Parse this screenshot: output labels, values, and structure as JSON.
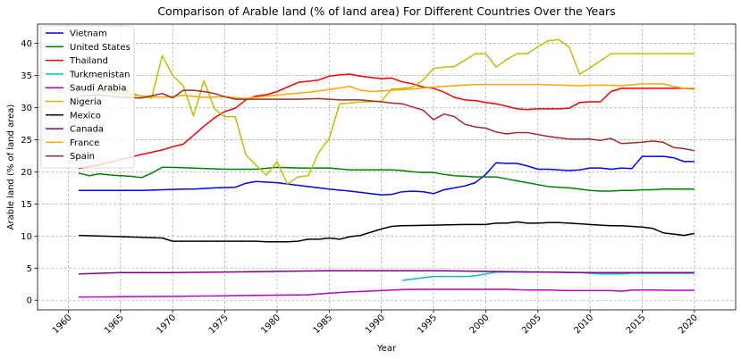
{
  "chart_data": {
    "type": "line",
    "title": "Comparison of Arable land (% of land area) For Different Countries Over the Years",
    "xlabel": "Year",
    "ylabel": "Arable land (% of land area)",
    "xlim": [
      1957.05,
      2023.95
    ],
    "ylim": [
      -1.5,
      43
    ],
    "xticks": [
      1960,
      1965,
      1970,
      1975,
      1980,
      1985,
      1990,
      1995,
      2000,
      2005,
      2010,
      2015,
      2020
    ],
    "yticks": [
      0,
      5,
      10,
      15,
      20,
      25,
      30,
      35,
      40
    ],
    "grid": true,
    "legend_position": "upper-left",
    "series": [
      {
        "name": "Vietnam",
        "color": "#0000ff",
        "x": [
          1961,
          1967,
          1969,
          1971,
          1972,
          1974,
          1976,
          1977,
          1978,
          1980,
          1985,
          1987,
          1990,
          1991,
          1992,
          1993,
          1994,
          1995,
          1996,
          1997,
          1998,
          1999,
          2000,
          2001,
          2002,
          2003,
          2004,
          2005,
          2006,
          2007,
          2008,
          2009,
          2010,
          2011,
          2012,
          2013,
          2014,
          2015,
          2016,
          2017,
          2018,
          2019,
          2020
        ],
        "y": [
          17.1,
          17.1,
          17.2,
          17.3,
          17.3,
          17.5,
          17.6,
          18.2,
          18.5,
          18.3,
          17.3,
          17.0,
          16.4,
          16.5,
          16.9,
          17.0,
          16.9,
          16.6,
          17.2,
          17.5,
          17.8,
          18.3,
          19.6,
          21.4,
          21.3,
          21.3,
          20.9,
          20.4,
          20.4,
          20.3,
          20.2,
          20.3,
          20.6,
          20.6,
          20.4,
          20.6,
          20.5,
          22.4,
          22.4,
          22.4,
          22.2,
          21.6,
          21.6
        ]
      },
      {
        "name": "United States",
        "color": "#008000",
        "x": [
          1961,
          1962,
          1963,
          1964,
          1965,
          1966,
          1967,
          1968,
          1969,
          1970,
          1975,
          1978,
          1980,
          1982,
          1985,
          1987,
          1990,
          1991,
          1992,
          1993,
          1994,
          1995,
          1996,
          1997,
          1998,
          1999,
          2000,
          2001,
          2002,
          2003,
          2004,
          2005,
          2006,
          2007,
          2008,
          2009,
          2010,
          2011,
          2012,
          2013,
          2014,
          2015,
          2016,
          2017,
          2018,
          2019,
          2020
        ],
        "y": [
          19.8,
          19.4,
          19.7,
          19.5,
          19.4,
          19.3,
          19.1,
          19.8,
          20.7,
          20.7,
          20.4,
          20.4,
          20.7,
          20.6,
          20.6,
          20.3,
          20.3,
          20.3,
          20.2,
          20.0,
          19.9,
          19.9,
          19.6,
          19.4,
          19.3,
          19.2,
          19.2,
          19.2,
          18.9,
          18.6,
          18.3,
          18.0,
          17.7,
          17.6,
          17.5,
          17.3,
          17.1,
          17.0,
          17.0,
          17.1,
          17.1,
          17.2,
          17.2,
          17.3,
          17.3,
          17.3,
          17.3
        ]
      },
      {
        "name": "Thailand",
        "color": "#ff0000",
        "x": [
          1961,
          1963,
          1965,
          1967,
          1969,
          1970,
          1971,
          1972,
          1973,
          1974,
          1975,
          1976,
          1977,
          1978,
          1979,
          1980,
          1981,
          1982,
          1983,
          1984,
          1985,
          1986,
          1987,
          1988,
          1989,
          1990,
          1991,
          1992,
          1993,
          1994,
          1995,
          1996,
          1997,
          1998,
          1999,
          2000,
          2001,
          2002,
          2003,
          2004,
          2005,
          2006,
          2007,
          2008,
          2009,
          2010,
          2011,
          2012,
          2013,
          2014,
          2015,
          2016,
          2017,
          2018,
          2019,
          2020
        ],
        "y": [
          20.5,
          21.1,
          21.9,
          22.7,
          23.4,
          23.9,
          24.3,
          25.7,
          27.1,
          28.4,
          29.4,
          29.9,
          31.2,
          31.8,
          32.0,
          32.5,
          33.2,
          33.9,
          34.1,
          34.3,
          34.9,
          35.1,
          35.2,
          34.9,
          34.7,
          34.5,
          34.6,
          34.0,
          33.7,
          33.2,
          33.0,
          32.4,
          31.6,
          31.2,
          31.1,
          30.8,
          30.6,
          30.2,
          29.8,
          29.7,
          29.8,
          29.8,
          29.8,
          29.9,
          30.8,
          30.9,
          30.9,
          32.5,
          33.0,
          33.0,
          33.0,
          33.0,
          33.0,
          33.0,
          33.0,
          32.9
        ]
      },
      {
        "name": "Turkmenistan",
        "color": "#00bfbf",
        "x": [
          1992,
          1993,
          1994,
          1995,
          1996,
          1997,
          1998,
          1999,
          2000,
          2001,
          2002,
          2003,
          2004,
          2005,
          2006,
          2007,
          2008,
          2009,
          2010,
          2011,
          2012,
          2013,
          2014,
          2015,
          2016,
          2017,
          2018,
          2019,
          2020
        ],
        "y": [
          3.1,
          3.3,
          3.5,
          3.7,
          3.7,
          3.7,
          3.7,
          3.8,
          4.1,
          4.4,
          4.4,
          4.4,
          4.4,
          4.4,
          4.4,
          4.4,
          4.3,
          4.3,
          4.2,
          4.1,
          4.1,
          4.1,
          4.2,
          4.2,
          4.2,
          4.2,
          4.2,
          4.2,
          4.2
        ]
      },
      {
        "name": "Saudi Arabia",
        "color": "#bf00bf",
        "x": [
          1961,
          1965,
          1970,
          1975,
          1980,
          1983,
          1985,
          1987,
          1990,
          1992,
          1994,
          1996,
          1998,
          2000,
          2002,
          2004,
          2006,
          2008,
          2010,
          2012,
          2013,
          2014,
          2016,
          2018,
          2020
        ],
        "y": [
          0.5,
          0.55,
          0.6,
          0.7,
          0.8,
          0.85,
          1.1,
          1.3,
          1.5,
          1.65,
          1.7,
          1.7,
          1.7,
          1.7,
          1.7,
          1.6,
          1.6,
          1.5,
          1.5,
          1.5,
          1.4,
          1.6,
          1.6,
          1.55,
          1.55
        ]
      },
      {
        "name": "Nigeria",
        "color": "#bfbf00",
        "x": [
          1961,
          1963,
          1965,
          1967,
          1968,
          1969,
          1970,
          1971,
          1972,
          1973,
          1974,
          1975,
          1976,
          1977,
          1978,
          1979,
          1980,
          1981,
          1982,
          1983,
          1984,
          1985,
          1986,
          1987,
          1988,
          1989,
          1990,
          1991,
          1992,
          1993,
          1994,
          1995,
          1996,
          1997,
          1998,
          1999,
          2000,
          2001,
          2002,
          2003,
          2004,
          2005,
          2006,
          2007,
          2008,
          2009,
          2010,
          2011,
          2012,
          2013,
          2014,
          2015,
          2016,
          2017,
          2018,
          2019,
          2020
        ],
        "y": [
          35.3,
          34.0,
          33.1,
          31.7,
          31.5,
          38.1,
          35.0,
          33.4,
          28.7,
          34.2,
          29.8,
          28.6,
          28.6,
          22.7,
          21.0,
          19.5,
          21.6,
          18.1,
          19.2,
          19.4,
          23.0,
          25.2,
          30.6,
          30.7,
          30.9,
          30.9,
          31.0,
          32.9,
          33.0,
          33.2,
          34.3,
          36.1,
          36.3,
          36.4,
          37.4,
          38.4,
          38.4,
          36.3,
          37.5,
          38.4,
          38.4,
          39.5,
          40.4,
          40.6,
          39.4,
          35.2,
          36.2,
          37.3,
          38.4,
          38.4,
          38.4,
          38.4,
          38.4,
          38.4,
          38.4,
          38.4,
          38.4
        ]
      },
      {
        "name": "Mexico",
        "color": "#000000",
        "x": [
          1961,
          1965,
          1969,
          1970,
          1972,
          1975,
          1978,
          1979,
          1980,
          1981,
          1982,
          1983,
          1984,
          1985,
          1986,
          1987,
          1988,
          1989,
          1990,
          1991,
          1992,
          1995,
          1998,
          2000,
          2001,
          2002,
          2003,
          2004,
          2005,
          2006,
          2007,
          2008,
          2009,
          2010,
          2011,
          2012,
          2013,
          2014,
          2015,
          2016,
          2017,
          2018,
          2019,
          2020
        ],
        "y": [
          10.1,
          9.9,
          9.7,
          9.2,
          9.2,
          9.2,
          9.2,
          9.1,
          9.1,
          9.1,
          9.2,
          9.5,
          9.5,
          9.7,
          9.5,
          9.9,
          10.1,
          10.6,
          11.1,
          11.5,
          11.6,
          11.7,
          11.8,
          11.8,
          12.0,
          12.0,
          12.2,
          12.0,
          12.0,
          12.1,
          12.1,
          12.0,
          11.9,
          11.8,
          11.7,
          11.6,
          11.6,
          11.5,
          11.4,
          11.2,
          10.5,
          10.3,
          10.1,
          10.4
        ]
      },
      {
        "name": "Canada",
        "color": "#800080",
        "x": [
          1961,
          1965,
          1970,
          1975,
          1980,
          1985,
          1990,
          1995,
          2000,
          2005,
          2010,
          2015,
          2020
        ],
        "y": [
          4.1,
          4.3,
          4.3,
          4.4,
          4.5,
          4.6,
          4.6,
          4.6,
          4.5,
          4.4,
          4.3,
          4.3,
          4.3
        ]
      },
      {
        "name": "France",
        "color": "#ffa500",
        "x": [
          1961,
          1963,
          1965,
          1967,
          1969,
          1971,
          1973,
          1975,
          1977,
          1979,
          1981,
          1983,
          1985,
          1987,
          1988,
          1989,
          1991,
          1993,
          1995,
          1997,
          1999,
          2001,
          2003,
          2005,
          2007,
          2009,
          2011,
          2013,
          2015,
          2017,
          2018,
          2019,
          2020
        ],
        "y": [
          33.2,
          32.6,
          32.2,
          31.8,
          31.6,
          31.9,
          31.6,
          31.7,
          31.4,
          31.8,
          32.1,
          32.4,
          32.8,
          33.3,
          32.7,
          32.5,
          32.7,
          32.9,
          33.2,
          33.4,
          33.6,
          33.6,
          33.6,
          33.6,
          33.5,
          33.4,
          33.5,
          33.4,
          33.7,
          33.7,
          33.3,
          33.0,
          33.0
        ]
      },
      {
        "name": "Spain",
        "color": "#a52a2a",
        "x": [
          1961,
          1963,
          1965,
          1967,
          1969,
          1970,
          1971,
          1972,
          1973,
          1974,
          1975,
          1976,
          1977,
          1978,
          1980,
          1982,
          1984,
          1985,
          1986,
          1988,
          1990,
          1991,
          1992,
          1993,
          1994,
          1995,
          1996,
          1997,
          1998,
          1999,
          2000,
          2001,
          2002,
          2003,
          2004,
          2005,
          2006,
          2007,
          2008,
          2009,
          2010,
          2011,
          2012,
          2013,
          2014,
          2015,
          2016,
          2017,
          2018,
          2019,
          2020
        ],
        "y": [
          31.8,
          32.0,
          31.6,
          31.5,
          32.2,
          31.5,
          32.7,
          32.7,
          32.5,
          32.2,
          31.7,
          31.3,
          31.3,
          31.3,
          31.3,
          31.3,
          31.4,
          31.3,
          31.2,
          31.2,
          30.9,
          30.7,
          30.6,
          30.1,
          29.6,
          28.1,
          29.0,
          28.6,
          27.4,
          27.0,
          26.8,
          26.2,
          25.9,
          26.1,
          26.1,
          25.8,
          25.5,
          25.3,
          25.1,
          25.1,
          25.1,
          24.9,
          25.2,
          24.4,
          24.5,
          24.6,
          24.8,
          24.6,
          23.8,
          23.6,
          23.3
        ]
      }
    ]
  }
}
